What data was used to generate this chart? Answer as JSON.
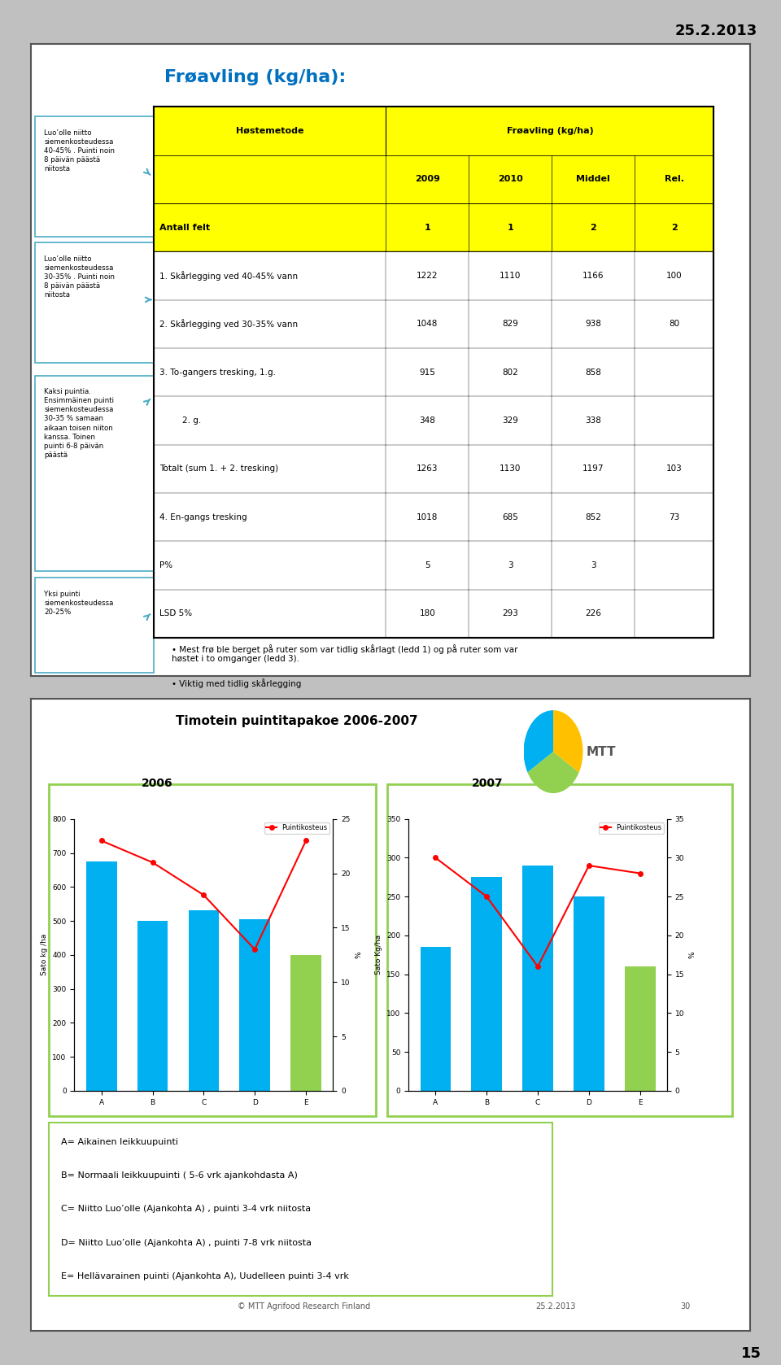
{
  "date_text": "25.2.2013",
  "page_number": "15",
  "slide1": {
    "title": "Frøavling (kg/ha):",
    "title_color": "#0070C0",
    "left_boxes": [
      {
        "text": "Luo’olle niitto\nsiemenkosteudessa\n40-45% . Puinti noin\n8 päivän päästä\nniitosta",
        "border_color": "#4BACC6"
      },
      {
        "text": "Luo’olle niitto\nsiemenkosteudessa\n30-35% . Puinti noin\n8 päivän päästä\nniitosta",
        "border_color": "#4BACC6"
      },
      {
        "text": "Kaksi puintia.\nEnsimmäinen puinti\nsiemenkosteudessa\n30-35 % samaan\naikaan toisen niiton\nkanssa. Toinen\npuinti 6-8 päivän\npäästä",
        "border_color": "#4BACC6"
      },
      {
        "text": "Yksi puinti\nsiemenkosteudessa\n20-25%",
        "border_color": "#4BACC6"
      }
    ],
    "table": {
      "header_bg": "#FFFF00",
      "col_header": "Høstemetode",
      "merged_header": "Frøavling (kg/ha)",
      "sub_headers": [
        "2009",
        "2010",
        "Middel",
        "Rel."
      ],
      "antall_row": [
        "Antall felt",
        "1",
        "1",
        "2",
        "2"
      ],
      "rows": [
        [
          "1. Skårlegging ved 40-45% vann",
          "1222",
          "1110",
          "1166",
          "100"
        ],
        [
          "2. Skårlegging ved 30-35% vann",
          "1048",
          "829",
          "938",
          "80"
        ],
        [
          "3. To-gangers tresking, 1.g.",
          "915",
          "802",
          "858",
          ""
        ],
        [
          "2. g.",
          "348",
          "329",
          "338",
          ""
        ],
        [
          "Totalt (sum 1. + 2. tresking)",
          "1263",
          "1130",
          "1197",
          "103"
        ],
        [
          "4. En-gangs tresking",
          "1018",
          "685",
          "852",
          "73"
        ],
        [
          "P%",
          "5",
          "3",
          "3",
          ""
        ],
        [
          "LSD 5%",
          "180",
          "293",
          "226",
          ""
        ]
      ],
      "row_indents": [
        false,
        false,
        false,
        true,
        false,
        false,
        false,
        false
      ]
    },
    "bullets": [
      "Mest frø ble berget på ruter som var tidlig skårlagt (ledd 1) og på ruter som var\nhøstet i to omganger (ledd 3).",
      "Viktig med tidlig skårlegging"
    ]
  },
  "slide2": {
    "title": "Timotein puintitapakoe 2006-2007",
    "year1": "2006",
    "year2": "2007",
    "chart1": {
      "categories": [
        "A",
        "B",
        "C",
        "D",
        "E"
      ],
      "bar_values": [
        675,
        500,
        530,
        505,
        400
      ],
      "bar_color": "#00B0F0",
      "green_bar_index": 4,
      "green_bar_color": "#92D050",
      "line_values": [
        23,
        21,
        18,
        13,
        23
      ],
      "line_color": "#FF0000",
      "line_marker": "o",
      "ylabel_left": "Sato kg /ha",
      "ylabel_right": "%",
      "ylim_left": [
        0,
        800
      ],
      "ylim_right": [
        0,
        25
      ],
      "yticks_left": [
        0,
        100,
        200,
        300,
        400,
        500,
        600,
        700,
        800
      ],
      "yticks_right": [
        0,
        5,
        10,
        15,
        20,
        25
      ],
      "legend_label": "Puintikosteus"
    },
    "chart2": {
      "categories": [
        "A",
        "B",
        "C",
        "D",
        "E"
      ],
      "bar_values": [
        185,
        275,
        290,
        250,
        160
      ],
      "bar_color": "#00B0F0",
      "green_bar_index": 4,
      "green_bar_color": "#92D050",
      "line_values": [
        30,
        25,
        16,
        29,
        28
      ],
      "line_color": "#FF0000",
      "line_marker": "o",
      "ylabel_left": "Sato Kg/ha",
      "ylabel_right": "%",
      "ylim_left": [
        0,
        350
      ],
      "ylim_right": [
        0,
        35
      ],
      "yticks_left": [
        0,
        50,
        100,
        150,
        200,
        250,
        300,
        350
      ],
      "yticks_right": [
        0.0,
        5.0,
        10.0,
        15.0,
        20.0,
        25.0,
        30.0,
        35.0
      ],
      "legend_label": "Puintikosteus"
    },
    "legend_text": [
      "A= Aikainen leikkuupuinti",
      "B= Normaali leikkuupuinti ( 5-6 vrk ajankohdasta A)",
      "C= Niitto Luo’olle (Ajankohta A) , puinti 3-4 vrk niitosta",
      "D= Niitto Luo’olle (Ajankohta A) , puinti 7-8 vrk niitosta",
      "E= Hellävarainen puinti (Ajankohta A), Uudelleen puinti 3-4 vrk"
    ],
    "footer_left": "© MTT Agrifood Research Finland",
    "footer_date": "25.2.2013",
    "footer_page": "30"
  }
}
